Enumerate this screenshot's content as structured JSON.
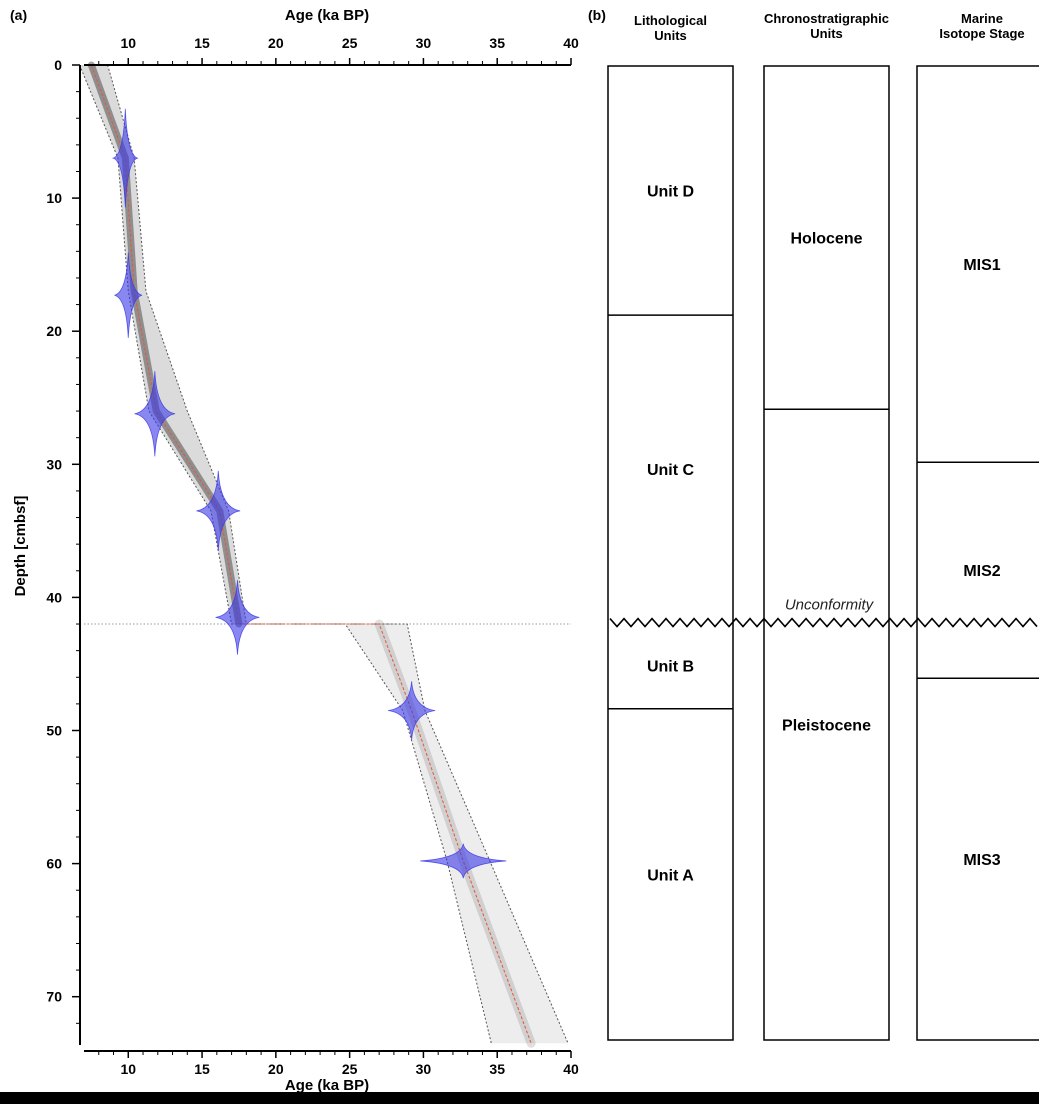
{
  "panels": {
    "a_label": "(a)",
    "b_label": "(b)"
  },
  "chart_data": {
    "type": "line",
    "title": "",
    "xlabel": "Age (ka BP)",
    "ylabel": "Depth [cmbsf]",
    "xlim": [
      7,
      40
    ],
    "ylim": [
      0,
      74
    ],
    "y_inverted": true,
    "x_ticks": [
      10,
      15,
      20,
      25,
      30,
      35,
      40
    ],
    "y_ticks": [
      0,
      10,
      20,
      30,
      40,
      50,
      60,
      70
    ],
    "hiatus_depth": 42,
    "series": [
      {
        "role": "median-age-model",
        "x": [
          7.5,
          9.8,
          10.4,
          11.9,
          16.2,
          17.5,
          27.0,
          29.2,
          32.7,
          37.3
        ],
        "y": [
          0,
          7,
          17,
          26,
          33.5,
          42,
          42,
          48.5,
          59.8,
          73.5
        ]
      },
      {
        "role": "confidence-lower",
        "x": [
          6.7,
          9.3,
          10.0,
          11.4,
          15.6,
          17.0,
          24.7,
          28.6,
          31.6,
          34.6
        ],
        "y": [
          0,
          7,
          17,
          26,
          33.5,
          42,
          42,
          48.5,
          59.8,
          73.5
        ]
      },
      {
        "role": "confidence-upper",
        "x": [
          8.6,
          10.4,
          11.2,
          14.0,
          16.8,
          18.0,
          28.9,
          30.1,
          34.5,
          39.8
        ],
        "y": [
          0,
          7,
          17,
          26,
          33.5,
          42,
          42,
          48.5,
          59.8,
          73.5
        ]
      }
    ],
    "dated_samples": [
      {
        "age": 9.8,
        "depth": 7,
        "age_sd": 0.25,
        "depth_sd": 3.7
      },
      {
        "age": 10.0,
        "depth": 17.3,
        "age_sd": 0.3,
        "depth_sd": 3.2
      },
      {
        "age": 11.8,
        "depth": 26.2,
        "age_sd": 0.5,
        "depth_sd": 3.2
      },
      {
        "age": 16.1,
        "depth": 33.5,
        "age_sd": 0.55,
        "depth_sd": 3.0
      },
      {
        "age": 17.4,
        "depth": 41.5,
        "age_sd": 0.55,
        "depth_sd": 2.8
      },
      {
        "age": 29.2,
        "depth": 48.5,
        "age_sd": 0.6,
        "depth_sd": 2.2
      },
      {
        "age": 32.7,
        "depth": 59.8,
        "age_sd": 1.2,
        "depth_sd": 1.3
      }
    ],
    "colors": {
      "median": "#e8553a",
      "bounds": "#555555",
      "samples": "#3a37e6"
    }
  },
  "stratigraphy": {
    "depth_range": [
      0,
      74
    ],
    "columns": [
      {
        "heading": [
          "Lithological",
          "Units"
        ],
        "units": [
          {
            "label": "Unit D",
            "top": 0,
            "bottom": 18.8
          },
          {
            "label": "Unit C",
            "top": 18.8,
            "bottom": 42
          },
          {
            "label": "Unit B",
            "top": 42,
            "bottom": 48.5
          },
          {
            "label": "Unit A",
            "top": 48.5,
            "bottom": 73.5
          }
        ]
      },
      {
        "heading": [
          "Chronostratigraphic",
          "Units"
        ],
        "units": [
          {
            "label": "Holocene",
            "top": 0,
            "bottom": 25.9
          },
          {
            "label": "Pleistocene",
            "top": 25.9,
            "bottom": 73.5
          }
        ]
      },
      {
        "heading": [
          "Marine",
          "Isotope Stage"
        ],
        "units": [
          {
            "label": "MIS1",
            "top": 0,
            "bottom": 29.9
          },
          {
            "label": "MIS2",
            "top": 29.9,
            "bottom": 46.2
          },
          {
            "label": "MIS3",
            "top": 46.2,
            "bottom": 73.5
          }
        ]
      }
    ],
    "unconformity": {
      "label": "Unconformity",
      "depth": 42
    }
  }
}
